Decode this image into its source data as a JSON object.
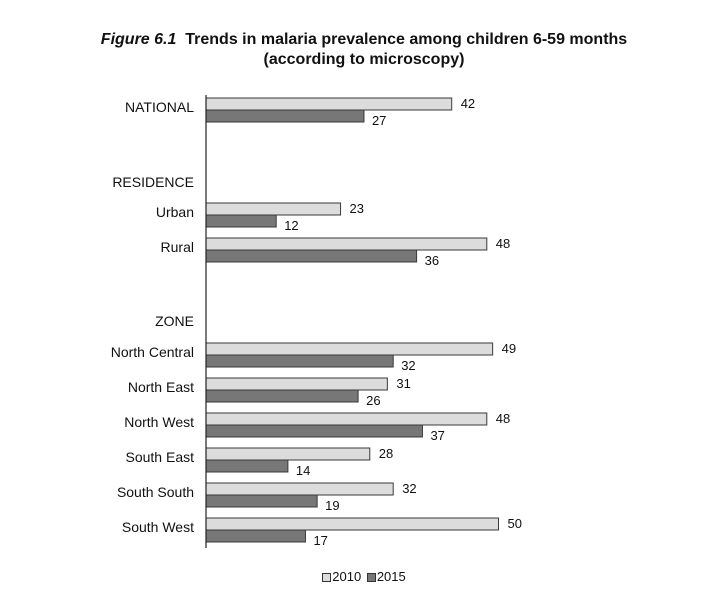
{
  "chart_data": {
    "type": "bar",
    "orientation": "horizontal",
    "title_prefix": "Figure 6.1",
    "title_line1": "Trends in malaria prevalence among children 6-59 months",
    "title_line2": "(according to microscopy)",
    "xlim": [
      0,
      50
    ],
    "grid": false,
    "legend_position": "bottom",
    "series": [
      {
        "name": "2010",
        "color": "#dcdcdc"
      },
      {
        "name": "2015",
        "color": "#777777"
      }
    ],
    "rows": [
      {
        "kind": "category",
        "label": "NATIONAL",
        "values": [
          42,
          27
        ]
      },
      {
        "kind": "heading",
        "label": "RESIDENCE"
      },
      {
        "kind": "category",
        "label": "Urban",
        "values": [
          23,
          12
        ]
      },
      {
        "kind": "category",
        "label": "Rural",
        "values": [
          48,
          36
        ]
      },
      {
        "kind": "heading",
        "label": "ZONE"
      },
      {
        "kind": "category",
        "label": "North Central",
        "values": [
          49,
          32
        ]
      },
      {
        "kind": "category",
        "label": "North East",
        "values": [
          31,
          26
        ]
      },
      {
        "kind": "category",
        "label": "North West",
        "values": [
          48,
          37
        ]
      },
      {
        "kind": "category",
        "label": "South East",
        "values": [
          28,
          14
        ]
      },
      {
        "kind": "category",
        "label": "South South",
        "values": [
          32,
          19
        ]
      },
      {
        "kind": "category",
        "label": "South West",
        "values": [
          50,
          17
        ]
      }
    ]
  }
}
